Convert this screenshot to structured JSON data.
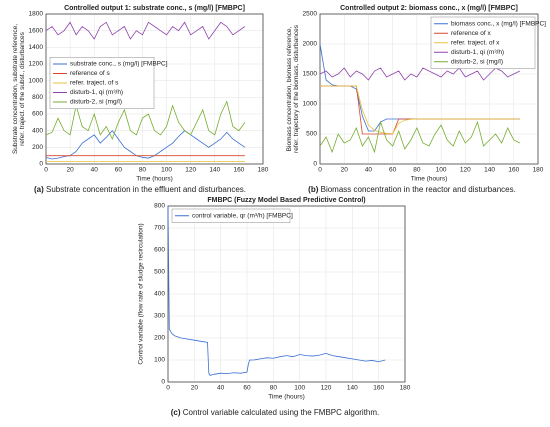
{
  "chart_data": [
    {
      "type": "line",
      "title": "Controlled output 1:  substrate conc., s (mg/l)  [FMBPC]",
      "xlabel": "Time (hours)",
      "ylabel": [
        "Substrate concentration, substrate reference,",
        "refer. traject. of the subst., disturbances"
      ],
      "caption": {
        "label": "(a)",
        "text": "Substrate concentration in the effluent and disturbances."
      },
      "xlim": [
        0,
        180
      ],
      "xticks": [
        0,
        20,
        40,
        60,
        80,
        100,
        120,
        140,
        160,
        180
      ],
      "ylim": [
        0,
        1800
      ],
      "yticks": [
        0,
        200,
        400,
        600,
        800,
        1000,
        1200,
        1400,
        1600,
        1800
      ],
      "grid": true,
      "legend": "center left",
      "x": [
        0,
        5,
        10,
        15,
        20,
        25,
        30,
        35,
        40,
        45,
        50,
        55,
        60,
        65,
        70,
        75,
        80,
        85,
        90,
        95,
        100,
        105,
        110,
        115,
        120,
        125,
        130,
        135,
        140,
        145,
        150,
        155,
        160,
        165
      ],
      "series": [
        {
          "name": "substrate conc., s (mg/l) [FMBPC]",
          "color": "#3b6fd6",
          "values": [
            80,
            60,
            70,
            90,
            100,
            150,
            250,
            300,
            350,
            250,
            320,
            400,
            300,
            200,
            150,
            100,
            80,
            70,
            100,
            150,
            200,
            250,
            330,
            400,
            350,
            300,
            250,
            200,
            250,
            300,
            380,
            300,
            250,
            200
          ]
        },
        {
          "name": "reference of s",
          "color": "#d9462b",
          "values": [
            100,
            100,
            100,
            100,
            100,
            100,
            100,
            100,
            100,
            100,
            100,
            100,
            100,
            100,
            100,
            100,
            100,
            100,
            100,
            100,
            100,
            100,
            100,
            100,
            100,
            100,
            100,
            100,
            100,
            100,
            100,
            100,
            100,
            100
          ]
        },
        {
          "name": "refer. traject. of s",
          "color": "#e8c23a",
          "values": [
            30,
            30,
            30,
            30,
            30,
            30,
            30,
            30,
            30,
            30,
            30,
            30,
            30,
            30,
            30,
            30,
            30,
            30,
            30,
            30,
            30,
            30,
            30,
            30,
            30,
            30,
            30,
            30,
            30,
            30,
            30,
            30,
            30,
            30
          ]
        },
        {
          "name": "disturb-1, qi (m³/h)",
          "color": "#8e44ad",
          "values": [
            1600,
            1650,
            1550,
            1600,
            1700,
            1550,
            1650,
            1600,
            1500,
            1650,
            1700,
            1550,
            1600,
            1650,
            1500,
            1600,
            1550,
            1700,
            1650,
            1600,
            1550,
            1650,
            1600,
            1700,
            1550,
            1600,
            1650,
            1500,
            1600,
            1700,
            1650,
            1550,
            1600,
            1650
          ]
        },
        {
          "name": "disturb-2, si (mg/l)",
          "color": "#77ac30",
          "values": [
            350,
            380,
            550,
            400,
            350,
            700,
            450,
            400,
            600,
            350,
            450,
            300,
            500,
            650,
            400,
            350,
            550,
            600,
            400,
            350,
            450,
            700,
            500,
            400,
            350,
            500,
            650,
            400,
            350,
            600,
            750,
            450,
            400,
            500
          ]
        }
      ]
    },
    {
      "type": "line",
      "title": "Controlled output 2:  biomass conc., x (mg/l)  [FMBPC]",
      "xlabel": "Time (hours)",
      "ylabel": [
        "Biomass concentration, biomass reference,",
        "refer. trajectory of the biomass, disturbances"
      ],
      "caption": {
        "label": "(b)",
        "text": "Biomass concentration in the reactor and disturbances."
      },
      "xlim": [
        0,
        180
      ],
      "xticks": [
        0,
        20,
        40,
        60,
        80,
        100,
        120,
        140,
        160,
        180
      ],
      "ylim": [
        0,
        2500
      ],
      "yticks": [
        0,
        500,
        1000,
        1500,
        2000,
        2500
      ],
      "grid": true,
      "legend": "upper right",
      "x": [
        0,
        5,
        10,
        15,
        20,
        25,
        30,
        35,
        40,
        45,
        50,
        55,
        60,
        65,
        70,
        75,
        80,
        85,
        90,
        95,
        100,
        105,
        110,
        115,
        120,
        125,
        130,
        135,
        140,
        145,
        150,
        155,
        160,
        165
      ],
      "series": [
        {
          "name": "biomass conc., x (mg/l) [FMBPC]",
          "color": "#3b6fd6",
          "values": [
            2000,
            1400,
            1320,
            1300,
            1300,
            1300,
            1250,
            800,
            550,
            550,
            700,
            750,
            750,
            750,
            750,
            750,
            750,
            750,
            750,
            750,
            750,
            750,
            750,
            750,
            750,
            750,
            750,
            750,
            750,
            750,
            750,
            750,
            750,
            750
          ]
        },
        {
          "name": "reference of x",
          "color": "#d9462b",
          "values": [
            1300,
            1300,
            1300,
            1300,
            1300,
            1300,
            1300,
            500,
            500,
            500,
            500,
            500,
            500,
            750,
            750,
            750,
            750,
            750,
            750,
            750,
            750,
            750,
            750,
            750,
            750,
            750,
            750,
            750,
            750,
            750,
            750,
            750,
            750,
            750
          ]
        },
        {
          "name": "refer. traject. of x",
          "color": "#e8c23a",
          "values": [
            1300,
            1300,
            1300,
            1300,
            1300,
            1300,
            1300,
            900,
            650,
            560,
            530,
            510,
            505,
            680,
            730,
            745,
            750,
            750,
            750,
            750,
            750,
            750,
            750,
            750,
            750,
            750,
            750,
            750,
            750,
            750,
            750,
            750,
            750,
            750
          ]
        },
        {
          "name": "disturb-1, qi (m³/h)",
          "color": "#8e44ad",
          "values": [
            1500,
            1550,
            1450,
            1500,
            1600,
            1450,
            1550,
            1500,
            1400,
            1550,
            1600,
            1450,
            1500,
            1550,
            1400,
            1500,
            1450,
            1600,
            1550,
            1500,
            1450,
            1550,
            1500,
            1600,
            1450,
            1500,
            1550,
            1400,
            1500,
            1600,
            1550,
            1450,
            1500,
            1550
          ]
        },
        {
          "name": "disturb-2, si (mg/l)",
          "color": "#77ac30",
          "values": [
            300,
            450,
            200,
            500,
            350,
            400,
            600,
            300,
            450,
            200,
            700,
            400,
            300,
            550,
            250,
            400,
            600,
            350,
            300,
            500,
            650,
            400,
            300,
            550,
            350,
            450,
            700,
            300,
            400,
            500,
            350,
            600,
            400,
            350
          ]
        }
      ]
    },
    {
      "type": "line",
      "title": "FMBPC (Fuzzy Model Based Predictive Control)",
      "xlabel": "Time (hours)",
      "ylabel": [
        "Control variable (flow rate of sludge recirculation)"
      ],
      "caption": {
        "label": "(c)",
        "text": "Control variable calculated using the FMBPC algorithm."
      },
      "xlim": [
        0,
        180
      ],
      "xticks": [
        0,
        20,
        40,
        60,
        80,
        100,
        120,
        140,
        160,
        180
      ],
      "ylim": [
        0,
        800
      ],
      "yticks": [
        0,
        100,
        200,
        300,
        400,
        500,
        600,
        700,
        800
      ],
      "grid": true,
      "legend": "upper left",
      "x": [
        0,
        1,
        3,
        5,
        10,
        15,
        20,
        25,
        30,
        31,
        32,
        35,
        40,
        45,
        50,
        55,
        60,
        61,
        62,
        65,
        70,
        75,
        80,
        85,
        90,
        95,
        100,
        105,
        110,
        115,
        120,
        125,
        130,
        135,
        140,
        145,
        150,
        155,
        160,
        165
      ],
      "series": [
        {
          "name": "control variable, qr (m³/h) [FMBPC]",
          "color": "#3b6fd6",
          "values": [
            800,
            240,
            220,
            210,
            200,
            195,
            190,
            185,
            180,
            40,
            30,
            35,
            40,
            38,
            42,
            40,
            45,
            80,
            100,
            100,
            105,
            110,
            108,
            115,
            120,
            115,
            125,
            120,
            118,
            122,
            130,
            120,
            115,
            110,
            105,
            100,
            95,
            98,
            92,
            100
          ]
        }
      ]
    }
  ]
}
